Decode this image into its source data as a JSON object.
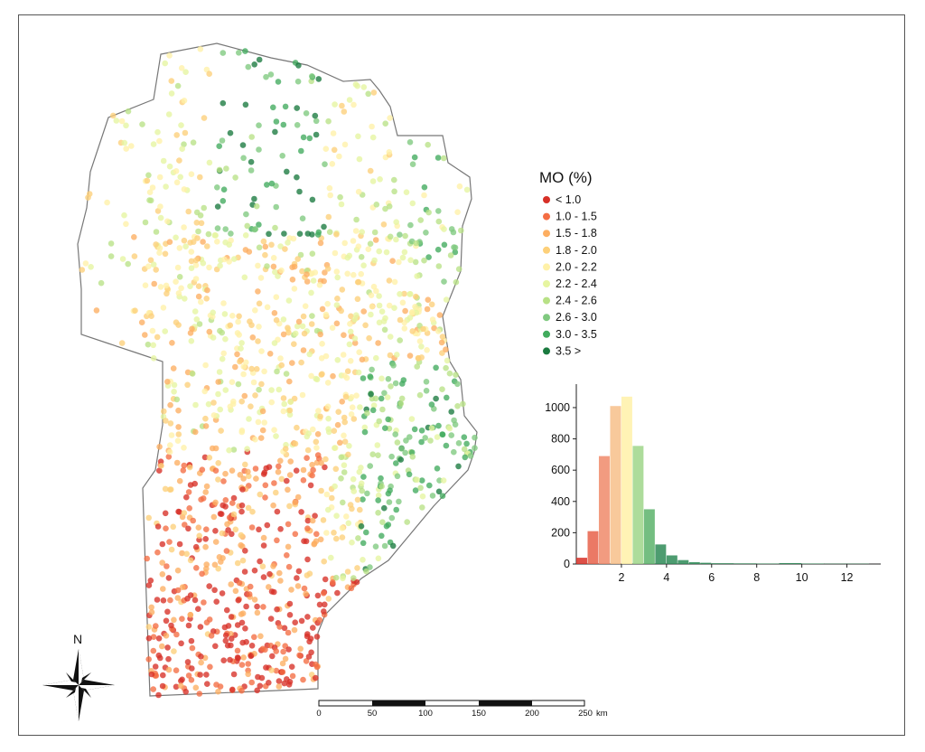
{
  "legend": {
    "title": "MO (%)",
    "items": [
      {
        "label": "<  1.0",
        "color": "#d73027"
      },
      {
        "label": "1.0  -  1.5",
        "color": "#f46d43"
      },
      {
        "label": "1.5  -  1.8",
        "color": "#fdae61"
      },
      {
        "label": "1.8  -  2.0",
        "color": "#fdd07a"
      },
      {
        "label": "2.0  -  2.2",
        "color": "#fff1a8"
      },
      {
        "label": "2.2  -  2.4",
        "color": "#e6f5a0"
      },
      {
        "label": "2.4  -  2.6",
        "color": "#b8e186"
      },
      {
        "label": "2.6  -  3.0",
        "color": "#7fc97f"
      },
      {
        "label": "3.0  -  3.5",
        "color": "#41ab5d"
      },
      {
        "label": "3.5  >",
        "color": "#1a7a3f"
      }
    ]
  },
  "chart_data": {
    "type": "bar",
    "x": [
      0.25,
      0.75,
      1.25,
      1.75,
      2.25,
      2.75,
      3.25,
      3.75,
      4.25,
      4.75,
      5.25,
      5.75,
      6.5,
      7.5,
      8.5,
      9.5,
      10.5,
      11.5,
      12.5
    ],
    "values": [
      40,
      210,
      690,
      1010,
      1070,
      755,
      350,
      125,
      55,
      25,
      12,
      8,
      5,
      4,
      3,
      6,
      3,
      2,
      2
    ],
    "colors": [
      "#d73027",
      "#e8614a",
      "#f08a6a",
      "#f7c08a",
      "#fff1a8",
      "#9fd68a",
      "#5cb36b",
      "#2e8b57",
      "#2e8b57",
      "#2e8b57",
      "#2e8b57",
      "#2e8b57",
      "#2e8b57",
      "#2e8b57",
      "#2e8b57",
      "#2e8b57",
      "#2e8b57",
      "#2e8b57",
      "#2e8b57"
    ],
    "xticks": [
      "2",
      "4",
      "6",
      "8",
      "10",
      "12"
    ],
    "yticks": [
      "0",
      "200",
      "400",
      "600",
      "800",
      "1000"
    ],
    "xlim": [
      0,
      13.5
    ],
    "ylim": [
      0,
      1150
    ]
  },
  "scale_bar": {
    "labels": [
      "0",
      "50",
      "100",
      "150",
      "200",
      "250"
    ],
    "unit": "km"
  },
  "north_arrow": {
    "label": "N"
  }
}
